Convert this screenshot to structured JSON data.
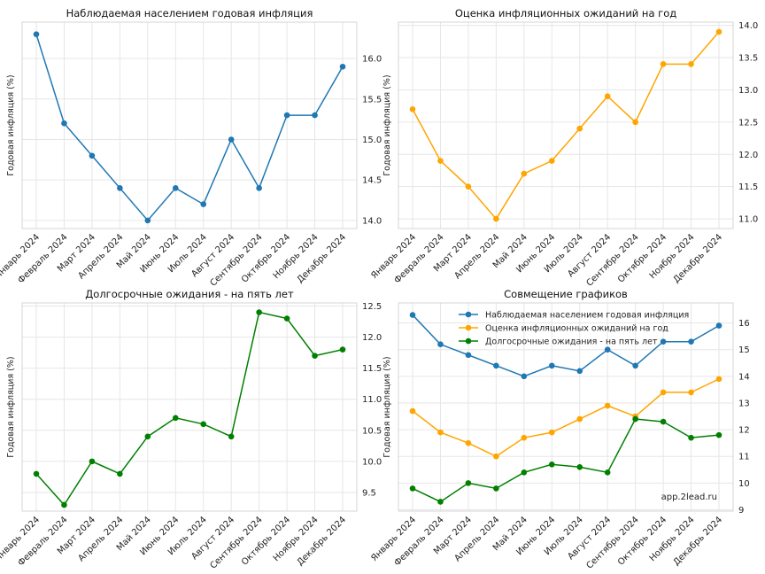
{
  "chart_data": [
    {
      "type": "line",
      "title": "Наблюдаемая населением годовая инфляция",
      "ylabel": "Годовая инфляция (%)",
      "categories": [
        "Январь 2024",
        "Февраль 2024",
        "Март 2024",
        "Апрель 2024",
        "Май 2024",
        "Июнь 2024",
        "Июль 2024",
        "Август 2024",
        "Сентябрь 2024",
        "Октябрь 2024",
        "Ноябрь 2024",
        "Декабрь 2024"
      ],
      "series": [
        {
          "name": "Наблюдаемая населением годовая инфляция",
          "color": "#1f77b4",
          "values": [
            16.3,
            15.2,
            14.8,
            14.4,
            14.0,
            14.4,
            14.2,
            15.0,
            14.4,
            15.3,
            15.3,
            15.9
          ]
        }
      ],
      "ylim": [
        13.9,
        16.45
      ],
      "yticks": [
        14.0,
        14.5,
        15.0,
        15.5,
        16.0
      ],
      "ytick_labels": [
        "14.0",
        "14.5",
        "15.0",
        "15.5",
        "16.0"
      ],
      "grid": true,
      "legend": "none"
    },
    {
      "type": "line",
      "title": "Оценка инфляционных ожиданий на год",
      "ylabel": "Годовая инфляция (%)",
      "categories": [
        "Январь 2024",
        "Февраль 2024",
        "Март 2024",
        "Апрель 2024",
        "Май 2024",
        "Июнь 2024",
        "Июль 2024",
        "Август 2024",
        "Сентябрь 2024",
        "Октябрь 2024",
        "Ноябрь 2024",
        "Декабрь 2024"
      ],
      "series": [
        {
          "name": "Оценка инфляционных ожиданий на год",
          "color": "#ffa500",
          "values": [
            12.7,
            11.9,
            11.5,
            11.0,
            11.7,
            11.9,
            12.4,
            12.9,
            12.5,
            13.4,
            13.4,
            13.9
          ]
        }
      ],
      "ylim": [
        10.85,
        14.05
      ],
      "yticks": [
        11.0,
        11.5,
        12.0,
        12.5,
        13.0,
        13.5,
        14.0
      ],
      "ytick_labels": [
        "11.0",
        "11.5",
        "12.0",
        "12.5",
        "13.0",
        "13.5",
        "14.0"
      ],
      "grid": true,
      "legend": "none"
    },
    {
      "type": "line",
      "title": "Долгосрочные ожидания - на пять лет",
      "ylabel": "Годовая инфляция (%)",
      "categories": [
        "Январь 2024",
        "Февраль 2024",
        "Март 2024",
        "Апрель 2024",
        "Май 2024",
        "Июнь 2024",
        "Июль 2024",
        "Август 2024",
        "Сентябрь 2024",
        "Октябрь 2024",
        "Ноябрь 2024",
        "Декабрь 2024"
      ],
      "series": [
        {
          "name": "Долгосрочные ожидания - на пять лет",
          "color": "#008000",
          "values": [
            9.8,
            9.3,
            10.0,
            9.8,
            10.4,
            10.7,
            10.6,
            10.4,
            12.4,
            12.3,
            11.7,
            11.8
          ]
        }
      ],
      "ylim": [
        9.2,
        12.55
      ],
      "yticks": [
        9.5,
        10.0,
        10.5,
        11.0,
        11.5,
        12.0,
        12.5
      ],
      "ytick_labels": [
        "9.5",
        "10.0",
        "10.5",
        "11.0",
        "11.5",
        "12.0",
        "12.5"
      ],
      "grid": true,
      "legend": "none"
    },
    {
      "type": "line",
      "title": "Совмещение графиков",
      "ylabel": "Годовая инфляция (%)",
      "categories": [
        "Январь 2024",
        "Февраль 2024",
        "Март 2024",
        "Апрель 2024",
        "Май 2024",
        "Июнь 2024",
        "Июль 2024",
        "Август 2024",
        "Сентябрь 2024",
        "Октябрь 2024",
        "Ноябрь 2024",
        "Декабрь 2024"
      ],
      "series": [
        {
          "name": "Наблюдаемая населением годовая инфляция",
          "color": "#1f77b4",
          "values": [
            16.3,
            15.2,
            14.8,
            14.4,
            14.0,
            14.4,
            14.2,
            15.0,
            14.4,
            15.3,
            15.3,
            15.9
          ]
        },
        {
          "name": "Оценка инфляционных ожиданий на год",
          "color": "#ffa500",
          "values": [
            12.7,
            11.9,
            11.5,
            11.0,
            11.7,
            11.9,
            12.4,
            12.9,
            12.5,
            13.4,
            13.4,
            13.9
          ]
        },
        {
          "name": "Долгосрочные ожидания - на пять лет",
          "color": "#008000",
          "values": [
            9.8,
            9.3,
            10.0,
            9.8,
            10.4,
            10.7,
            10.6,
            10.4,
            12.4,
            12.3,
            11.7,
            11.8
          ]
        }
      ],
      "ylim": [
        8.95,
        16.75
      ],
      "yticks": [
        9,
        10,
        11,
        12,
        13,
        14,
        15,
        16
      ],
      "ytick_labels": [
        "9",
        "10",
        "11",
        "12",
        "13",
        "14",
        "15",
        "16"
      ],
      "grid": true,
      "legend": "top-center",
      "annotation": "app.2lead.ru"
    }
  ]
}
